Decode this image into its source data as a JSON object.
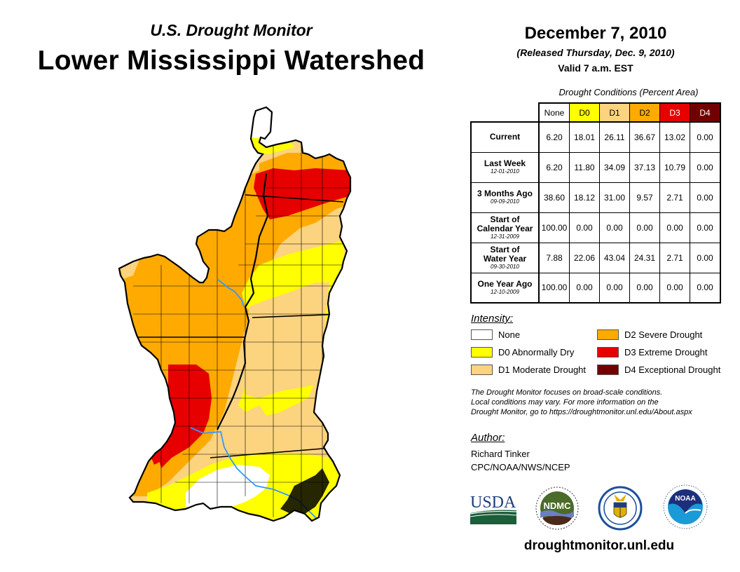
{
  "header": {
    "subtitle": "U.S. Drought Monitor",
    "title": "Lower Mississippi Watershed",
    "date": "December 7, 2010",
    "released": "(Released Thursday, Dec. 9, 2010)",
    "valid": "Valid 7 a.m. EST"
  },
  "table": {
    "caption": "Drought Conditions (Percent Area)",
    "columns": [
      {
        "label": "None",
        "color": "#ffffff",
        "text_color": "#000000"
      },
      {
        "label": "D0",
        "color": "#ffff00",
        "text_color": "#000000"
      },
      {
        "label": "D1",
        "color": "#fcd37f",
        "text_color": "#000000"
      },
      {
        "label": "D2",
        "color": "#ffaa00",
        "text_color": "#000000"
      },
      {
        "label": "D3",
        "color": "#e60000",
        "text_color": "#ffffff"
      },
      {
        "label": "D4",
        "color": "#730000",
        "text_color": "#ffffff"
      }
    ],
    "rows": [
      {
        "label": "Current",
        "label2": "",
        "date": "",
        "values": [
          "6.20",
          "18.01",
          "26.11",
          "36.67",
          "13.02",
          "0.00"
        ]
      },
      {
        "label": "Last Week",
        "label2": "",
        "date": "12-01-2010",
        "values": [
          "6.20",
          "11.80",
          "34.09",
          "37.13",
          "10.79",
          "0.00"
        ]
      },
      {
        "label": "3 Months Ago",
        "label2": "",
        "date": "09-09-2010",
        "values": [
          "38.60",
          "18.12",
          "31.00",
          "9.57",
          "2.71",
          "0.00"
        ]
      },
      {
        "label": "Start of",
        "label2": "Calendar Year",
        "date": "12-31-2009",
        "values": [
          "100.00",
          "0.00",
          "0.00",
          "0.00",
          "0.00",
          "0.00"
        ]
      },
      {
        "label": "Start of",
        "label2": "Water Year",
        "date": "09-30-2010",
        "values": [
          "7.88",
          "22.06",
          "43.04",
          "24.31",
          "2.71",
          "0.00"
        ]
      },
      {
        "label": "One Year Ago",
        "label2": "",
        "date": "12-10-2009",
        "values": [
          "100.00",
          "0.00",
          "0.00",
          "0.00",
          "0.00",
          "0.00"
        ]
      }
    ]
  },
  "legend": {
    "title": "Intensity:",
    "items": [
      {
        "label": "None",
        "color": "#ffffff"
      },
      {
        "label": "D0 Abnormally Dry",
        "color": "#ffff00"
      },
      {
        "label": "D1 Moderate Drought",
        "color": "#fcd37f"
      },
      {
        "label": "D2 Severe Drought",
        "color": "#ffaa00"
      },
      {
        "label": "D3 Extreme Drought",
        "color": "#e60000"
      },
      {
        "label": "D4 Exceptional Drought",
        "color": "#730000"
      }
    ]
  },
  "note": {
    "lines": [
      "The Drought Monitor focuses on broad-scale conditions.",
      "Local conditions may vary. For more information on the",
      "Drought Monitor, go to https://droughtmonitor.unl.edu/About.aspx"
    ]
  },
  "author": {
    "label": "Author:",
    "name": "Richard Tinker",
    "org": "CPC/NOAA/NWS/NCEP"
  },
  "logos": {
    "usda": "USDA",
    "ndmc": "NDMC",
    "noaa": "NOAA",
    "commerce": "Department of Commerce"
  },
  "website": "droughtmonitor.unl.edu",
  "colors": {
    "none": "#ffffff",
    "d0": "#ffff00",
    "d1": "#fcd37f",
    "d2": "#ffaa00",
    "d3": "#e60000",
    "d4": "#730000",
    "river": "#3399ff"
  }
}
